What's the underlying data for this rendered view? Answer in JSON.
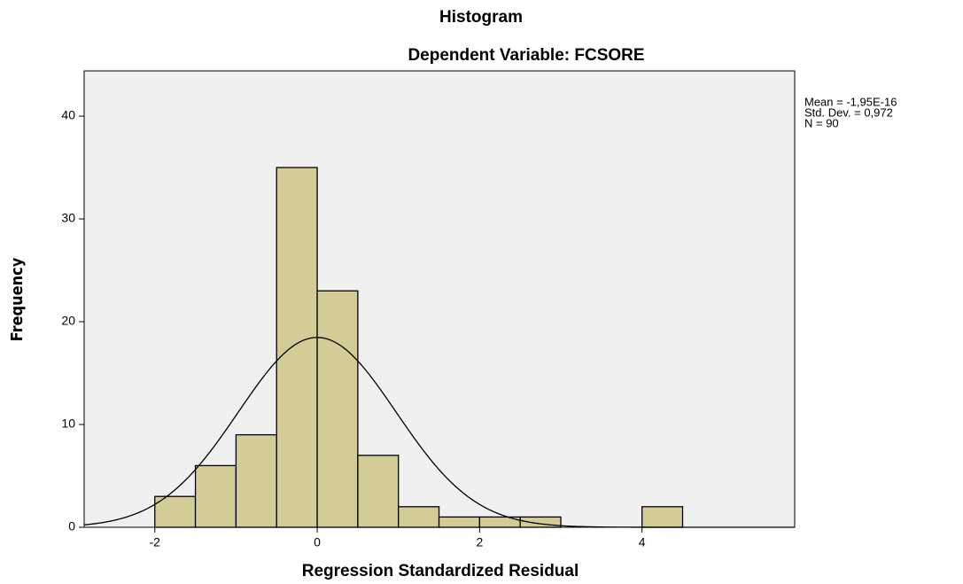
{
  "chart_data": {
    "type": "histogram",
    "title": "Histogram",
    "subtitle": "Dependent Variable: FCSORE",
    "xlabel": "Regression Standardized Residual",
    "ylabel": "Frequency",
    "bins": [
      -2,
      -1.5,
      -1,
      -0.5,
      0,
      0.5,
      1,
      1.5,
      2,
      2.5,
      3,
      3.5,
      4,
      4.5
    ],
    "values": [
      3,
      6,
      9,
      35,
      23,
      7,
      2,
      1,
      1,
      1,
      0,
      0,
      2
    ],
    "color": "#d4cc96",
    "xlim": [
      -2.87,
      5.88
    ],
    "xticks": [
      -2,
      0,
      2,
      4
    ],
    "ylim": [
      0,
      44.4
    ],
    "yticks": [
      0,
      10,
      20,
      30,
      40
    ],
    "stats": [
      {
        "value": -1.95e-16,
        "label": "Mean = -1,95E-16"
      },
      {
        "value": 0.972,
        "label": "Std. Dev. = 0,972"
      },
      {
        "value": 90,
        "label": "N = 90"
      }
    ]
  }
}
